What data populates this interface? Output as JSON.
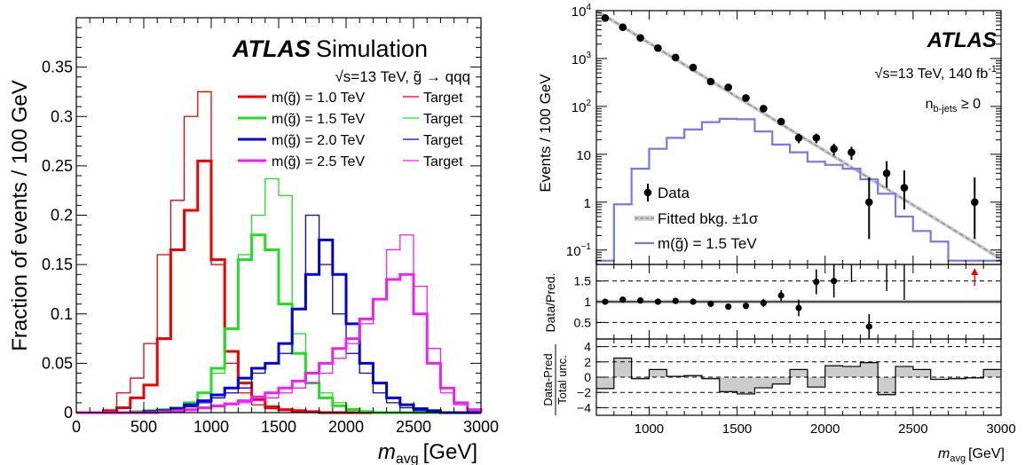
{
  "chart_data": [
    {
      "type": "step-histogram",
      "xlabel_main": "m",
      "xlabel_sub": "avg",
      "xlabel_unit": "[GeV]",
      "ylabel": "Fraction of events / 100 GeV",
      "xlim": [
        0,
        3000
      ],
      "ylim": [
        0,
        0.4
      ],
      "xticks": [
        0,
        500,
        1000,
        1500,
        2000,
        2500,
        3000
      ],
      "yticks": [
        0,
        0.05,
        0.1,
        0.15,
        0.2,
        0.25,
        0.3,
        0.35
      ],
      "ytick_labels": [
        "0",
        "0.05",
        "0.1",
        "0.15",
        "0.2",
        "0.25",
        "0.3",
        "0.35"
      ],
      "atlas_label": "ATLAS",
      "atlas_sub": "Simulation",
      "energy_text": "√s=13 TeV, g̃ → qqq",
      "legend_position": "top-right",
      "bin_edges": [
        0,
        100,
        200,
        300,
        400,
        500,
        600,
        700,
        800,
        900,
        1000,
        1100,
        1200,
        1300,
        1400,
        1500,
        1600,
        1700,
        1800,
        1900,
        2000,
        2100,
        2200,
        2300,
        2400,
        2500,
        2600,
        2700,
        2800,
        2900,
        3000
      ],
      "series": [
        {
          "name": "m(g̃) = 1.0 TeV",
          "target_label": "Target",
          "color": "#ee0000",
          "values": [
            0,
            0,
            0.002,
            0.005,
            0.015,
            0.028,
            0.075,
            0.165,
            0.205,
            0.255,
            0.155,
            0.062,
            0.03,
            0.013,
            0.006,
            0.003,
            0.002,
            0.001,
            0,
            0,
            0,
            0,
            0,
            0,
            0,
            0,
            0,
            0,
            0,
            0
          ],
          "target": [
            0,
            0,
            0.002,
            0.02,
            0.035,
            0.07,
            0.16,
            0.215,
            0.3,
            0.325,
            0.15,
            0.05,
            0.02,
            0.008,
            0.004,
            0.002,
            0.001,
            0,
            0,
            0,
            0,
            0,
            0,
            0,
            0,
            0,
            0,
            0,
            0,
            0
          ]
        },
        {
          "name": "m(g̃) = 1.5 TeV",
          "target_label": "Target",
          "color": "#22dd22",
          "values": [
            0,
            0,
            0,
            0,
            0.001,
            0.002,
            0.003,
            0.005,
            0.01,
            0.02,
            0.045,
            0.085,
            0.155,
            0.18,
            0.165,
            0.11,
            0.06,
            0.03,
            0.015,
            0.007,
            0.003,
            0.001,
            0,
            0,
            0,
            0,
            0,
            0,
            0,
            0
          ],
          "target": [
            0,
            0,
            0,
            0,
            0,
            0.001,
            0.002,
            0.005,
            0.01,
            0.02,
            0.04,
            0.085,
            0.16,
            0.2,
            0.237,
            0.22,
            0.08,
            0.04,
            0.02,
            0.01,
            0.004,
            0.001,
            0,
            0,
            0,
            0,
            0,
            0,
            0,
            0
          ]
        },
        {
          "name": "m(g̃) = 2.0 TeV",
          "target_label": "Target",
          "color": "#0000dd",
          "values": [
            0,
            0,
            0,
            0,
            0,
            0.001,
            0.002,
            0.004,
            0.008,
            0.012,
            0.018,
            0.025,
            0.035,
            0.045,
            0.05,
            0.07,
            0.105,
            0.14,
            0.175,
            0.14,
            0.09,
            0.05,
            0.03,
            0.015,
            0.008,
            0.004,
            0.002,
            0,
            0,
            0
          ],
          "target": [
            0,
            0,
            0,
            0,
            0,
            0,
            0.001,
            0.003,
            0.006,
            0.01,
            0.015,
            0.02,
            0.025,
            0.04,
            0.05,
            0.06,
            0.105,
            0.2,
            0.15,
            0.1,
            0.06,
            0.04,
            0.02,
            0.01,
            0.005,
            0.002,
            0.001,
            0,
            0,
            0
          ]
        },
        {
          "name": "m(g̃) = 2.5 TeV",
          "target_label": "Target",
          "color": "#ee22ee",
          "values": [
            0,
            0,
            0,
            0,
            0,
            0,
            0.001,
            0.002,
            0.003,
            0.005,
            0.007,
            0.009,
            0.012,
            0.016,
            0.02,
            0.025,
            0.032,
            0.04,
            0.05,
            0.065,
            0.075,
            0.095,
            0.115,
            0.135,
            0.14,
            0.1,
            0.05,
            0.025,
            0.01,
            0.003
          ],
          "target": [
            0,
            0,
            0,
            0,
            0,
            0,
            0,
            0.001,
            0.002,
            0.004,
            0.006,
            0.008,
            0.01,
            0.012,
            0.015,
            0.02,
            0.025,
            0.03,
            0.04,
            0.055,
            0.07,
            0.09,
            0.115,
            0.165,
            0.18,
            0.128,
            0.065,
            0.02,
            0.008,
            0.002
          ]
        }
      ]
    },
    {
      "type": "scatter-log-with-ratio",
      "ylabel": "Events / 100 GeV",
      "xlabel_main": "m",
      "xlabel_sub": "avg",
      "xlabel_unit": "[GeV]",
      "xlim": [
        700,
        3000
      ],
      "ylim_log": [
        0.05,
        10000
      ],
      "xticks": [
        1000,
        1500,
        2000,
        2500,
        3000
      ],
      "yticks_log": [
        {
          "v": 10000,
          "base": "10",
          "exp": "4"
        },
        {
          "v": 1000,
          "base": "10",
          "exp": "3"
        },
        {
          "v": 100,
          "base": "10",
          "exp": "2"
        },
        {
          "v": 10,
          "base": "10",
          "exp": ""
        },
        {
          "v": 1,
          "base": "1",
          "exp": ""
        },
        {
          "v": 0.1,
          "base": "10",
          "exp": "−1"
        }
      ],
      "atlas_label": "ATLAS",
      "energy_text": "√s=13 TeV, 140 fb",
      "energy_sup": "-1",
      "nb_main": "n",
      "nb_sub": "b-jets",
      "nb_rest": " ≥ 0",
      "legend": {
        "data": "Data",
        "fit": "Fitted bkg. ±1σ",
        "signal": "m(g̃) = 1.5 TeV",
        "position": "bottom-left"
      },
      "colors": {
        "signal": "#7777ee",
        "fit": "#888888",
        "band": "#cccccc",
        "arrow": "#ee0000"
      },
      "bin_edges": [
        700,
        800,
        900,
        1000,
        1100,
        1200,
        1300,
        1400,
        1500,
        1600,
        1700,
        1800,
        1900,
        2000,
        2100,
        2200,
        2300,
        2400,
        2500,
        2600,
        2700,
        2800,
        2900,
        3000
      ],
      "data_x": [
        750,
        850,
        950,
        1050,
        1150,
        1250,
        1350,
        1450,
        1550,
        1650,
        1750,
        1850,
        1950,
        2050,
        2150,
        2250,
        2350,
        2450,
        2850
      ],
      "data_y": [
        7000,
        4500,
        2700,
        1650,
        1050,
        650,
        330,
        250,
        150,
        90,
        48,
        22,
        22,
        13,
        11,
        1,
        4,
        2,
        1
      ],
      "data_err_low": [
        80,
        70,
        50,
        40,
        30,
        25,
        18,
        15,
        12,
        9,
        7,
        5,
        5,
        3.6,
        3.3,
        0.83,
        2,
        1.3,
        0.83
      ],
      "data_err_high": [
        80,
        70,
        50,
        40,
        30,
        25,
        18,
        15,
        12,
        9,
        7,
        5,
        5,
        3.6,
        3.3,
        2.3,
        3.2,
        2.6,
        2.3
      ],
      "fit_line": {
        "x": [
          700,
          3000
        ],
        "y": [
          10000,
          0.065
        ]
      },
      "signal_values": [
        0.06,
        0.9,
        5,
        13,
        22,
        33,
        47,
        55,
        54,
        30,
        16,
        11,
        7,
        6,
        5,
        3,
        1.5,
        0.5,
        0.25,
        0.15,
        0.06,
        0.06,
        0.06
      ],
      "ratio_panel": {
        "ylabel": "Data/Pred.",
        "ylim": [
          0.1,
          1.9
        ],
        "yticks": [
          0.5,
          1,
          1.5
        ],
        "ytick_labels": [
          "0.5",
          "1",
          "1.5"
        ],
        "points_x": [
          750,
          850,
          950,
          1050,
          1150,
          1250,
          1350,
          1450,
          1550,
          1650,
          1750,
          1850,
          1950,
          2050,
          2250
        ],
        "points_y": [
          1.0,
          1.05,
          1.03,
          1.0,
          1.02,
          1.0,
          0.95,
          0.88,
          0.9,
          0.97,
          1.15,
          0.85,
          1.48,
          1.5,
          0.4
        ],
        "errors": [
          0.02,
          0.02,
          0.02,
          0.03,
          0.03,
          0.04,
          0.05,
          0.06,
          0.08,
          0.1,
          0.13,
          0.2,
          0.3,
          0.4,
          0.3
        ],
        "offscale_marks_x": [
          2150,
          2350,
          2450
        ],
        "arrow_x": 2850
      },
      "pull_panel": {
        "ylabel_top": "Data-Pred",
        "ylabel_bottom": "Total unc.",
        "ylim": [
          -5,
          5
        ],
        "yticks": [
          -4,
          -2,
          0,
          2,
          4
        ],
        "ytick_labels": [
          "−4",
          "−2",
          "0",
          "2",
          "4"
        ],
        "values": [
          -1.5,
          2.5,
          -0.2,
          1.0,
          0.1,
          0.2,
          -0.2,
          -1.9,
          -2.2,
          -1.4,
          -0.9,
          1.0,
          -1.3,
          1.5,
          1.4,
          1.9,
          -2.3,
          1.4,
          1.0,
          -0.3,
          -0.2,
          -0.1,
          1.0
        ]
      }
    }
  ]
}
